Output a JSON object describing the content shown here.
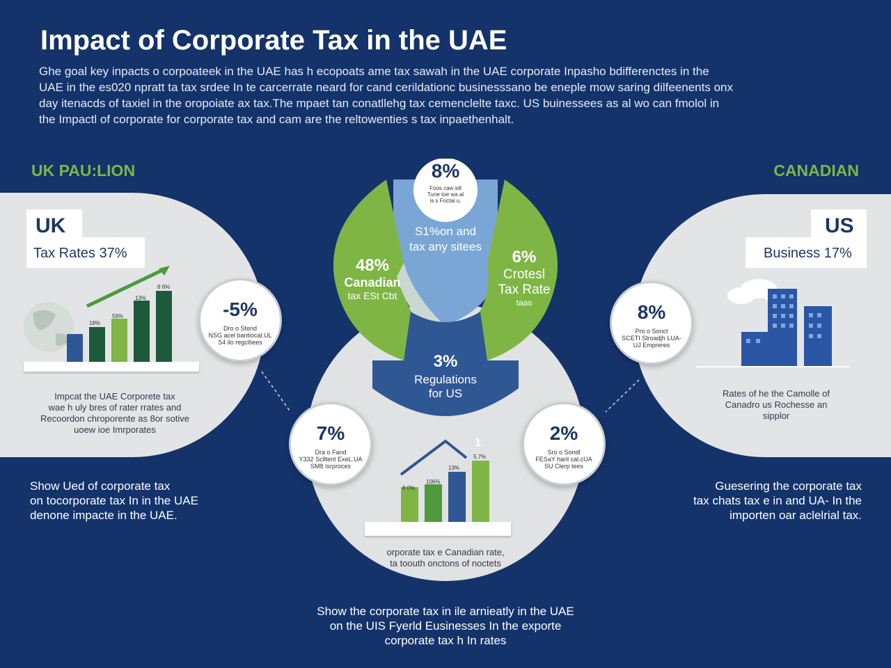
{
  "title": "Impact of Corporate Tax in the UAE",
  "intro_lines": [
    "Ghe goal key inpacts o corpoateek in the UAE has h ecopoats ame tax sawah in the UAE corporate Inpasho bdifferenctes in the",
    "UAE in the es020 npratt ta tax srdee In te carcerrate neard for cand cerildationc businesssano be eneple mow saring dilfeenents onx",
    "day itenacds of taxiel in the oropoiate ax tax.The mpaet tan conatllehg tax cemenclelte taxc. US buinessees as al wo can fmolol in",
    "the Impactl of corporate for corporate tax and cam are the reltowenties s tax inpaethenhalt."
  ],
  "left": {
    "region_label": "UK PAU:LION",
    "tag_title": "UK",
    "tag_subtitle": "Tax Rates 37%",
    "bar_labels": [
      "18%",
      "59%",
      "13%",
      "8 6%"
    ],
    "stat": {
      "value": "-5%",
      "note": "Dro o Stend\nNSG acel bantiocal.UL\nS4 ilo regcltiees"
    },
    "description": "Impcat the UAE Corporete tax\nwae h uly bres of rater rrates and\nRecoordon chroporente as 8or sotive\nuoew ioe Imrporates",
    "footer": "Show Ued of corporate tax\non tocorporate tax In in the UAE\ndenone impacte in the UAE."
  },
  "right": {
    "region_label": "CANADIAN",
    "tag_title": "US",
    "tag_subtitle": "Business 17%",
    "stat": {
      "value": "8%",
      "note": "Pro o Sonct\nSCETI Stroadjh LUA-\nUJ Empreres"
    },
    "description": "Rates of he the Camolle of\nCanadro us Rochesse an\nsipplor",
    "footer": "Guesering the corporate tax\ntax chats tax e in and UA- In the\nimporten oar aclelrial tax."
  },
  "center": {
    "top": {
      "value": "8%",
      "note": "Foos caw wll\nTune toe wa al\nis s Foctai u.",
      "sub": "S1%on and\ntax any sitees"
    },
    "left_lobe": {
      "value": "48%",
      "line1": "Canadian",
      "line2": "tax ESt Cbt"
    },
    "right_lobe": {
      "value": "6%",
      "line1": "Crotesl",
      "line2": "Tax Rate",
      "line3": "taas"
    },
    "bottom": {
      "value": "3%",
      "line1": "Regulations",
      "line2": "for US"
    },
    "stat_left": {
      "value": "7%",
      "note": "Dra o Fand\nY332 Sclltent ExeL.UA\nSM8 Isrproces"
    },
    "stat_right": {
      "value": "2%",
      "note": "Sro o Sondl\nFESaY haril cal.cUA\nSU Clerp tees"
    },
    "bar_labels": [
      "8 0%",
      "106%",
      "13%",
      "5.7%"
    ],
    "bar_marker": "1",
    "caption": "orporate tax e Canadian rate,\nta toouth onctons of noctets"
  },
  "bottom_footer": "Show the corporate tax in ile arnieatly in the UAE\non the UIS Fyerld Eusinesses In the exporte\ncorporate tax h In rates",
  "colors": {
    "navy": "#14336b",
    "green": "#7fb545",
    "light_blue": "#7aa6d6",
    "dark_blue": "#2f5793",
    "panel": "#e3e4e6"
  }
}
